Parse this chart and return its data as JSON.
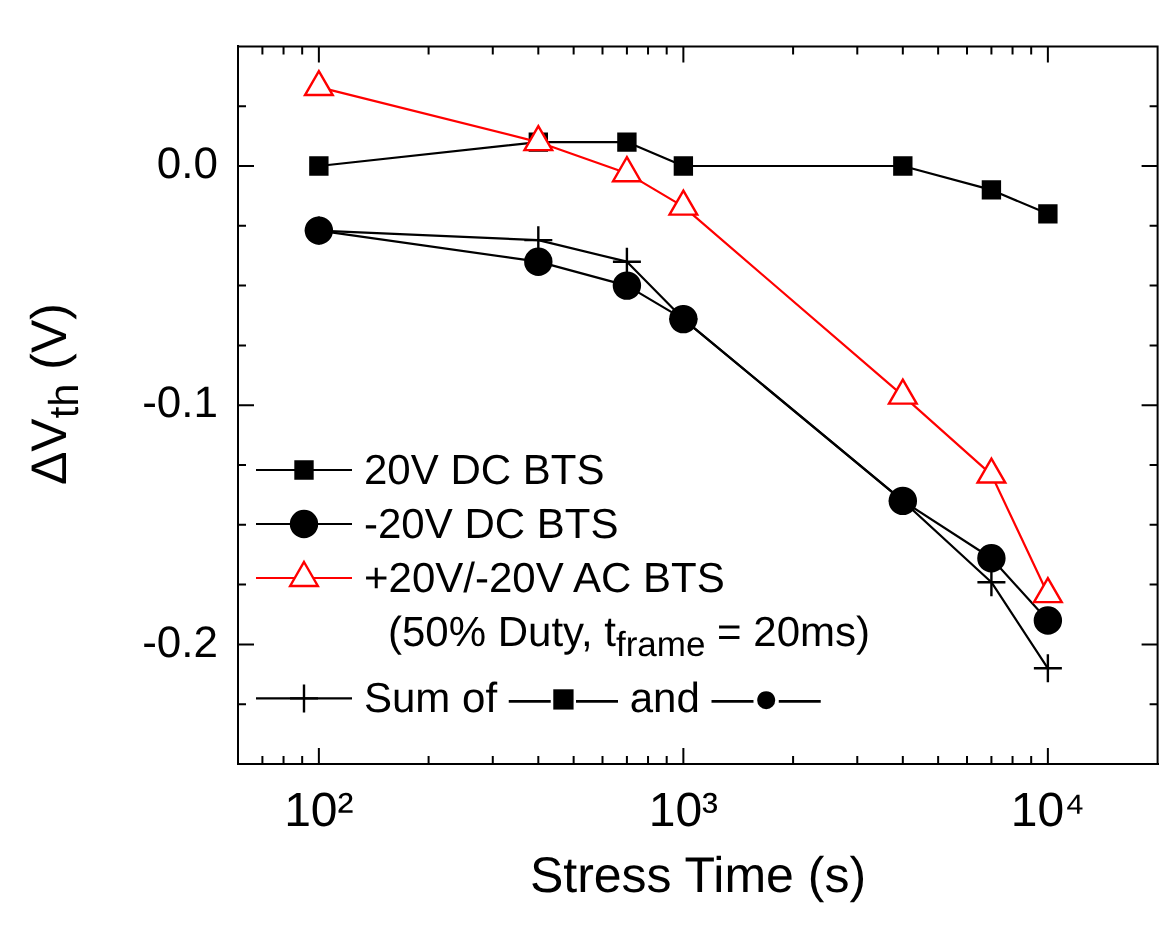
{
  "chart_data": {
    "type": "line",
    "xlabel": "Stress Time (s)",
    "ylabel": "ΔV$_{th}$ (V)",
    "log": "x",
    "xlim": [
      60,
      20000
    ],
    "xticks": [
      {
        "value": 70,
        "label": null
      },
      {
        "value": 80,
        "label": null
      },
      {
        "value": 90,
        "label": null
      },
      {
        "value": 100,
        "label": "10²"
      },
      {
        "value": 200,
        "label": null
      },
      {
        "value": 300,
        "label": null
      },
      {
        "value": 400,
        "label": null
      },
      {
        "value": 500,
        "label": null
      },
      {
        "value": 600,
        "label": null
      },
      {
        "value": 700,
        "label": null
      },
      {
        "value": 800,
        "label": null
      },
      {
        "value": 900,
        "label": null
      },
      {
        "value": 1000,
        "label": "10³"
      },
      {
        "value": 2000,
        "label": null
      },
      {
        "value": 3000,
        "label": null
      },
      {
        "value": 4000,
        "label": null
      },
      {
        "value": 5000,
        "label": null
      },
      {
        "value": 6000,
        "label": null
      },
      {
        "value": 7000,
        "label": null
      },
      {
        "value": 8000,
        "label": null
      },
      {
        "value": 9000,
        "label": null
      },
      {
        "value": 10000,
        "label": "10⁴"
      }
    ],
    "ylim": [
      -0.25,
      0.05
    ],
    "yticks": [
      {
        "value": -0.225,
        "label": null
      },
      {
        "value": -0.2,
        "label": "-0.2"
      },
      {
        "value": -0.175,
        "label": null
      },
      {
        "value": -0.15,
        "label": null
      },
      {
        "value": -0.125,
        "label": null
      },
      {
        "value": -0.1,
        "label": "-0.1"
      },
      {
        "value": -0.075,
        "label": null
      },
      {
        "value": -0.05,
        "label": null
      },
      {
        "value": -0.025,
        "label": null
      },
      {
        "value": 0,
        "label": "0.0"
      },
      {
        "value": 0.025,
        "label": null
      }
    ],
    "x": [
      100,
      400,
      700,
      1000,
      4000,
      7000,
      10000
    ],
    "grid": false,
    "legend": "bottom left",
    "line_style": "solid",
    "series": [
      {
        "name": "20V DC BTS",
        "color": "#000000",
        "marker": "square",
        "values": [
          0,
          0.01,
          0.01,
          0,
          0,
          -0.01,
          -0.02
        ]
      },
      {
        "name": "-20V DC BTS",
        "color": "#000000",
        "marker": "circle",
        "values": [
          -0.027,
          -0.04,
          -0.05,
          -0.064,
          -0.14,
          -0.164,
          -0.19
        ]
      },
      {
        "name": "+20V/-20V AC BTS\n(50% Duty, t$_{frame}$ = 20ms)",
        "color": "#ff0000",
        "marker": "triangle",
        "values": [
          0.033,
          0.01,
          -0.003,
          -0.017,
          -0.096,
          -0.129,
          -0.179
        ]
      },
      {
        "name": "Sum of —■— and —●—",
        "color": "#000000",
        "marker": "cross",
        "values": [
          -0.027,
          -0.031,
          -0.04,
          -0.064,
          -0.14,
          -0.174,
          -0.21
        ]
      }
    ]
  }
}
